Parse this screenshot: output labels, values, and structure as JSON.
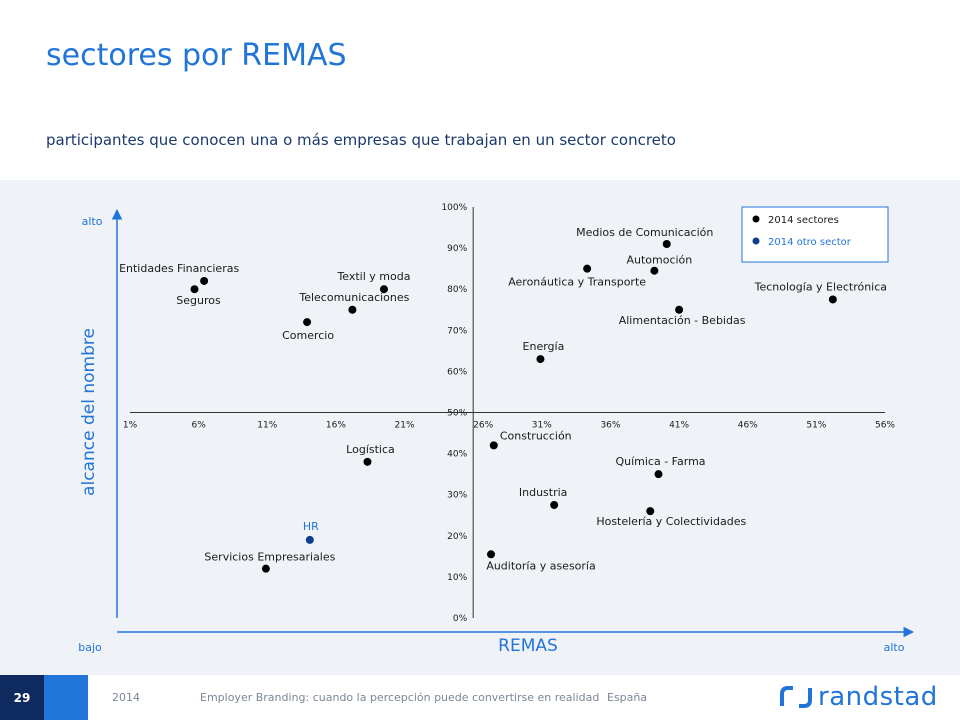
{
  "header": {
    "title": "sectores por REMAS",
    "subtitle": "participantes que conocen una o más empresas que trabajan en un sector concreto"
  },
  "chart_data": {
    "type": "scatter",
    "xlabel": "REMAS",
    "ylabel": "alcance del nombre",
    "x_ticks": [
      "1%",
      "6%",
      "11%",
      "16%",
      "21%",
      "26%",
      "31%",
      "36%",
      "41%",
      "46%",
      "51%",
      "56%"
    ],
    "y_ticks": [
      "0%",
      "10%",
      "20%",
      "30%",
      "40%",
      "50%",
      "60%",
      "70%",
      "80%",
      "90%",
      "100%"
    ],
    "xlim": [
      1,
      56
    ],
    "ylim": [
      0,
      100
    ],
    "x_low_label": "bajo",
    "x_high_label": "alto",
    "y_high_label": "alto",
    "legend": [
      {
        "label": "2014 sectores",
        "color": "#000000"
      },
      {
        "label": "2014 otro sector",
        "color": "#0F3F8C"
      }
    ],
    "legend_position": "top-right",
    "points": [
      {
        "label": "Medios de Comunicación",
        "x": 40.1,
        "y": 91,
        "series": "2014 sectores"
      },
      {
        "label": "Aeronáutica y Transporte",
        "x": 34.3,
        "y": 85,
        "series": "2014 sectores"
      },
      {
        "label": "Automoción",
        "x": 39.2,
        "y": 84.5,
        "series": "2014 sectores"
      },
      {
        "label": "Tecnología y Electrónica",
        "x": 52.2,
        "y": 77.5,
        "series": "2014 sectores"
      },
      {
        "label": "Alimentación - Bebidas",
        "x": 41,
        "y": 75,
        "series": "2014 sectores"
      },
      {
        "label": "Energía",
        "x": 30.9,
        "y": 63,
        "series": "2014 sectores"
      },
      {
        "label": "Entidades Financieras",
        "x": 6.4,
        "y": 82,
        "series": "2014 sectores"
      },
      {
        "label": "Seguros",
        "x": 5.7,
        "y": 80,
        "series": "2014 sectores"
      },
      {
        "label": "Textil y moda",
        "x": 19.5,
        "y": 80,
        "series": "2014 sectores"
      },
      {
        "label": "Telecomunicaciones",
        "x": 17.2,
        "y": 75,
        "series": "2014 sectores"
      },
      {
        "label": "Comercio",
        "x": 13.9,
        "y": 72,
        "series": "2014 sectores"
      },
      {
        "label": "Construcción",
        "x": 27.5,
        "y": 42,
        "series": "2014 sectores"
      },
      {
        "label": "Logística",
        "x": 18.3,
        "y": 38,
        "series": "2014 sectores"
      },
      {
        "label": "Química - Farma",
        "x": 39.5,
        "y": 35,
        "series": "2014 sectores"
      },
      {
        "label": "Industria",
        "x": 31.9,
        "y": 27.5,
        "series": "2014 sectores"
      },
      {
        "label": "Hostelería y Colectividades",
        "x": 38.9,
        "y": 26,
        "series": "2014 sectores"
      },
      {
        "label": "HR",
        "x": 14.1,
        "y": 19,
        "series": "2014 otro sector"
      },
      {
        "label": "Auditoría y asesoría",
        "x": 27.3,
        "y": 15.5,
        "series": "2014 sectores"
      },
      {
        "label": "Servicios Empresariales",
        "x": 10.9,
        "y": 12,
        "series": "2014 sectores"
      }
    ]
  },
  "footer": {
    "page_number": "29",
    "year": "2014",
    "report_title": "Employer Branding: cuando la percepción puede convertirse en realidad",
    "country": "España",
    "brand": "randstad"
  },
  "colors": {
    "accent": "#2175D9",
    "navy": "#0F2A5F",
    "hr_point": "#0F3F8C",
    "chart_bg": "#EFF2F7"
  }
}
